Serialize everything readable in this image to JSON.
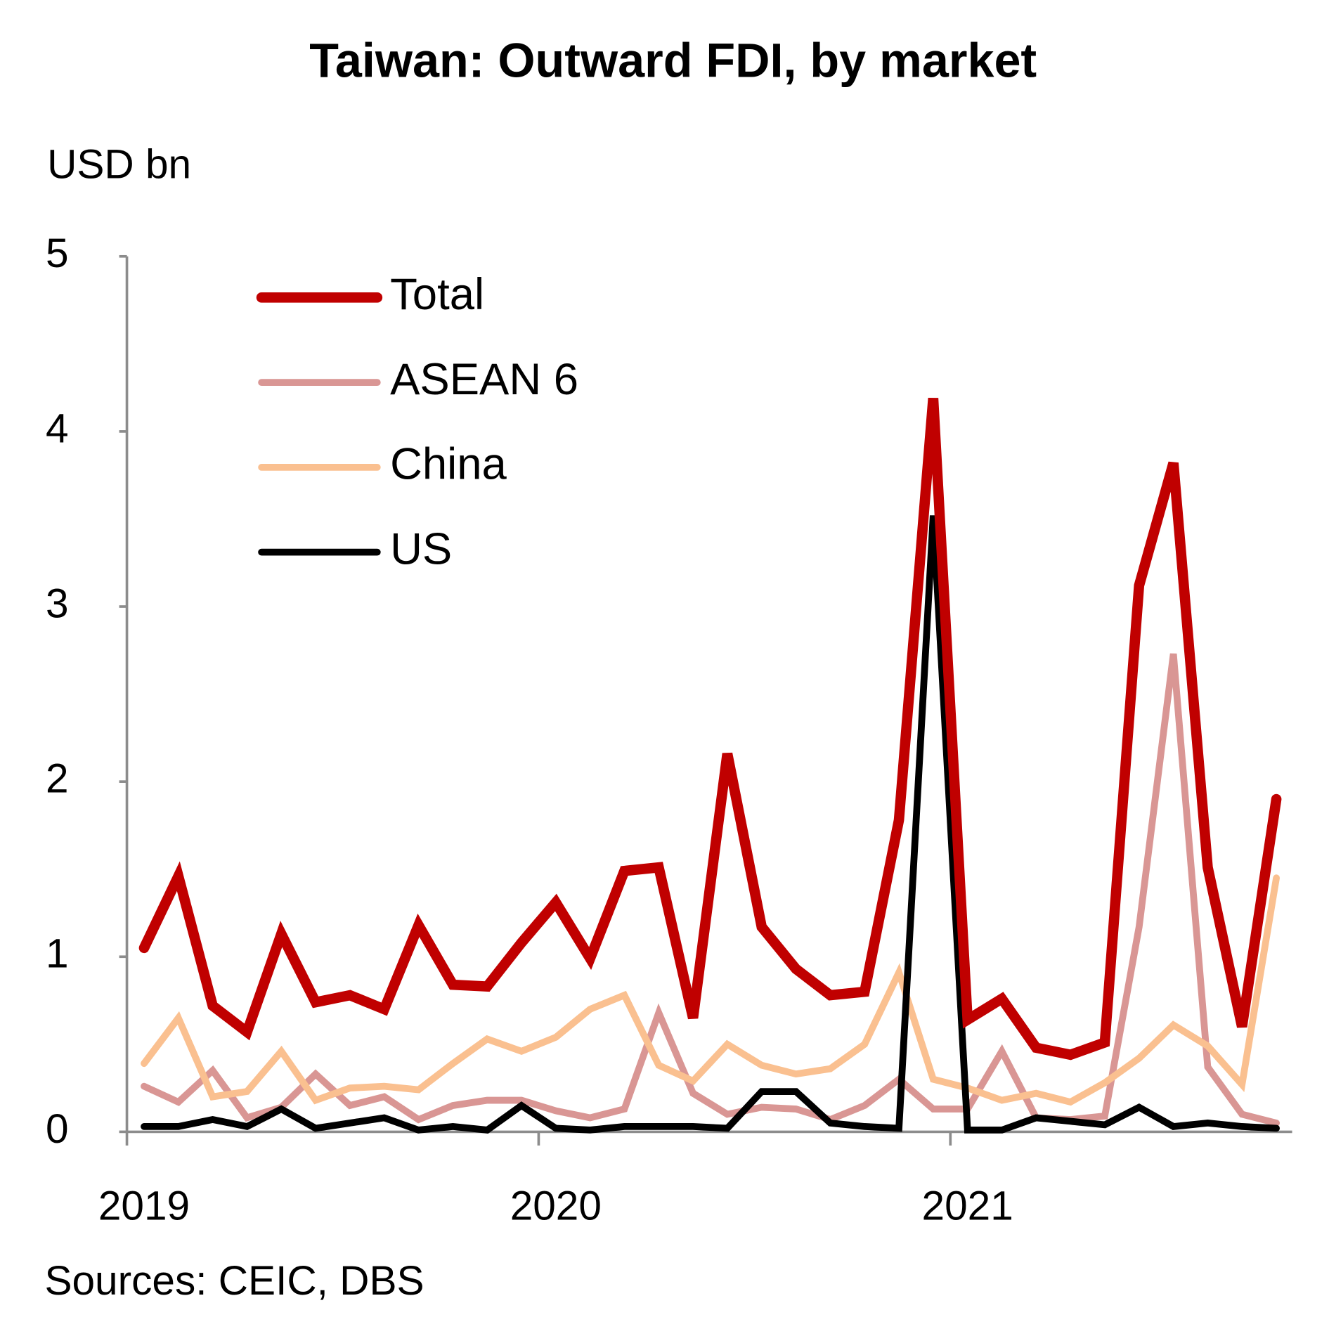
{
  "chart_data": {
    "type": "line",
    "title": "Taiwan: Outward FDI, by market",
    "y_axis_label": "USD bn",
    "source": "Sources: CEIC, DBS",
    "x": [
      2019.0417,
      2019.125,
      2019.2083,
      2019.2917,
      2019.375,
      2019.4583,
      2019.5417,
      2019.625,
      2019.7083,
      2019.7917,
      2019.875,
      2019.9583,
      2020.0417,
      2020.125,
      2020.2083,
      2020.2917,
      2020.375,
      2020.4583,
      2020.5417,
      2020.625,
      2020.7083,
      2020.7917,
      2020.875,
      2020.9583,
      2021.0417,
      2021.125,
      2021.2083,
      2021.2917,
      2021.375,
      2021.4583,
      2021.5417,
      2021.625,
      2021.7083,
      2021.7917
    ],
    "series": [
      {
        "name": "Total",
        "color": "#c00000",
        "values": [
          1.05,
          1.46,
          0.72,
          0.57,
          1.13,
          0.74,
          0.78,
          0.7,
          1.18,
          0.84,
          0.83,
          1.08,
          1.31,
          0.99,
          1.49,
          1.51,
          0.65,
          2.16,
          1.17,
          0.93,
          0.78,
          0.8,
          1.78,
          4.19,
          0.64,
          0.76,
          0.48,
          0.44,
          0.51,
          3.12,
          3.82,
          1.51,
          0.6,
          1.9
        ]
      },
      {
        "name": "ASEAN 6",
        "color": "#d99694",
        "values": [
          0.26,
          0.17,
          0.35,
          0.08,
          0.14,
          0.33,
          0.15,
          0.2,
          0.07,
          0.15,
          0.18,
          0.18,
          0.12,
          0.08,
          0.13,
          0.68,
          0.22,
          0.1,
          0.14,
          0.13,
          0.07,
          0.15,
          0.3,
          0.13,
          0.13,
          0.46,
          0.08,
          0.07,
          0.09,
          1.17,
          2.73,
          0.37,
          0.1,
          0.05
        ]
      },
      {
        "name": "China",
        "color": "#fac090",
        "values": [
          0.39,
          0.65,
          0.2,
          0.23,
          0.46,
          0.18,
          0.25,
          0.26,
          0.24,
          0.39,
          0.53,
          0.46,
          0.54,
          0.7,
          0.78,
          0.38,
          0.29,
          0.5,
          0.38,
          0.33,
          0.36,
          0.5,
          0.91,
          0.3,
          0.25,
          0.18,
          0.22,
          0.17,
          0.28,
          0.42,
          0.61,
          0.49,
          0.27,
          1.45
        ]
      },
      {
        "name": "US",
        "color": "#000000",
        "values": [
          0.03,
          0.03,
          0.07,
          0.03,
          0.13,
          0.02,
          0.05,
          0.08,
          0.01,
          0.03,
          0.01,
          0.15,
          0.02,
          0.01,
          0.03,
          0.03,
          0.03,
          0.02,
          0.23,
          0.23,
          0.05,
          0.03,
          0.02,
          3.52,
          0.01,
          0.01,
          0.08,
          0.06,
          0.04,
          0.14,
          0.03,
          0.05,
          0.03,
          0.02
        ]
      }
    ],
    "xlim": [
      2019,
      2021.83
    ],
    "xticks": [
      2019,
      2020,
      2021
    ],
    "ylim": [
      0,
      5
    ],
    "yticks": [
      0,
      1,
      2,
      3,
      4,
      5
    ],
    "grid": false,
    "legend": "top-left"
  }
}
